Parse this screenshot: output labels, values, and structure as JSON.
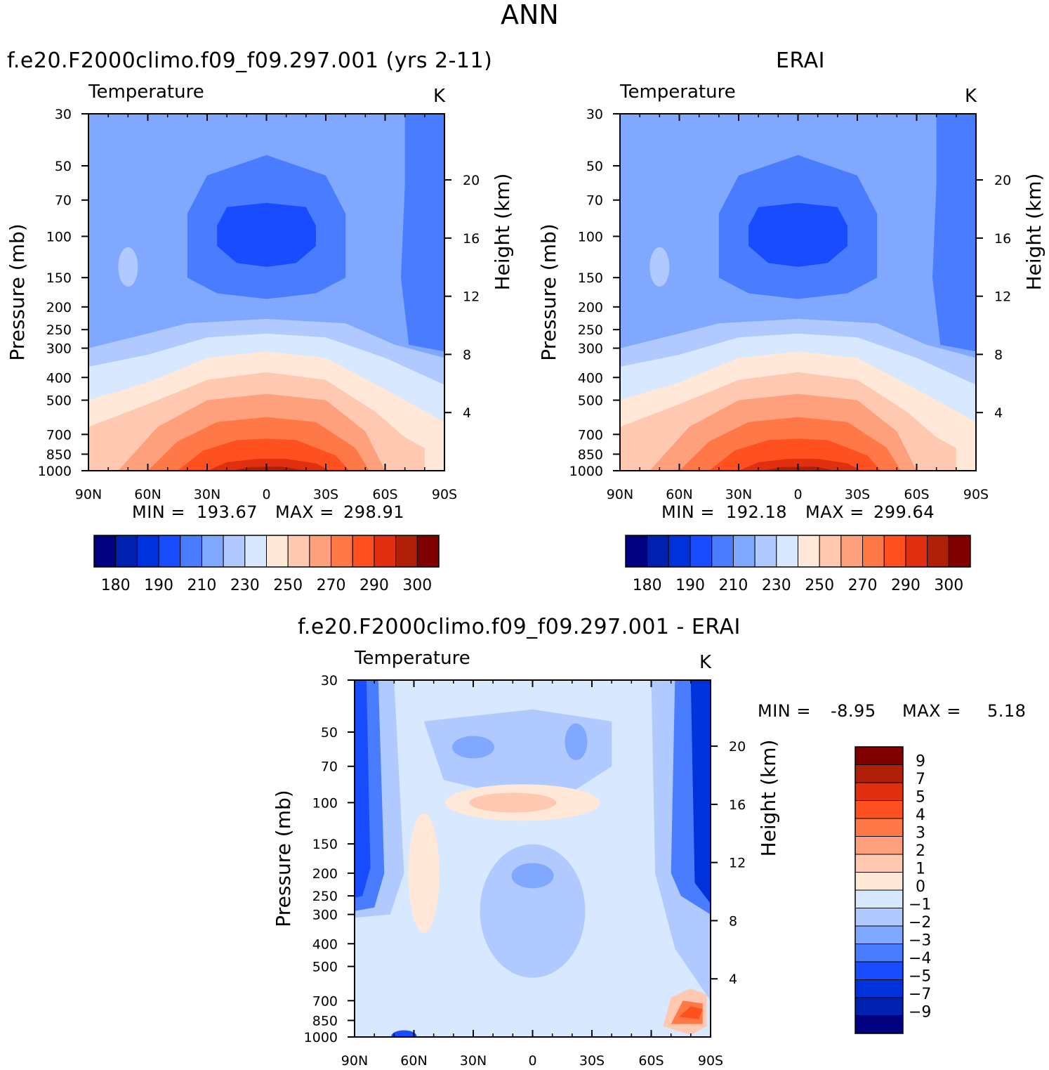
{
  "figure": {
    "title": "ANN"
  },
  "chart_data": [
    {
      "type": "heatmap",
      "id": "model",
      "title": "f.e20.F2000climo.f09_f09.297.001 (yrs 2-11)",
      "variable": "Temperature",
      "units": "K",
      "ylabel": "Pressure (mb)",
      "ylabel_right": "Height (km)",
      "x_ticks": [
        "90N",
        "60N",
        "30N",
        "0",
        "30S",
        "60S",
        "90S"
      ],
      "y_ticks": [
        "30",
        "50",
        "70",
        "100",
        "150",
        "200",
        "250",
        "300",
        "400",
        "500",
        "700",
        "850",
        "1000"
      ],
      "y_ticks_right": [
        "20",
        "16",
        "12",
        "8",
        "4"
      ],
      "min_label": "MIN =",
      "min": "193.67",
      "max_label": "MAX =",
      "max": "298.91",
      "colorbar_labels": [
        "180",
        "190",
        "210",
        "230",
        "250",
        "270",
        "290",
        "300"
      ],
      "colorbar_levels": [
        180,
        185,
        190,
        200,
        210,
        220,
        230,
        240,
        250,
        260,
        270,
        280,
        290,
        295,
        300
      ],
      "y_scale": "log"
    },
    {
      "type": "heatmap",
      "id": "obs",
      "title": "ERAI",
      "variable": "Temperature",
      "units": "K",
      "ylabel": "Pressure (mb)",
      "ylabel_right": "Height (km)",
      "x_ticks": [
        "90N",
        "60N",
        "30N",
        "0",
        "30S",
        "60S",
        "90S"
      ],
      "y_ticks": [
        "30",
        "50",
        "70",
        "100",
        "150",
        "200",
        "250",
        "300",
        "400",
        "500",
        "700",
        "850",
        "1000"
      ],
      "y_ticks_right": [
        "20",
        "16",
        "12",
        "8",
        "4"
      ],
      "min_label": "MIN =",
      "min": "192.18",
      "max_label": "MAX =",
      "max": "299.64",
      "colorbar_labels": [
        "180",
        "190",
        "210",
        "230",
        "250",
        "270",
        "290",
        "300"
      ],
      "colorbar_levels": [
        180,
        185,
        190,
        200,
        210,
        220,
        230,
        240,
        250,
        260,
        270,
        280,
        290,
        295,
        300
      ],
      "y_scale": "log"
    },
    {
      "type": "heatmap",
      "id": "diff",
      "title": "f.e20.F2000climo.f09_f09.297.001 - ERAI",
      "variable": "Temperature",
      "units": "K",
      "ylabel": "Pressure (mb)",
      "ylabel_right": "Height (km)",
      "x_ticks": [
        "90N",
        "60N",
        "30N",
        "0",
        "30S",
        "60S",
        "90S"
      ],
      "y_ticks": [
        "30",
        "50",
        "70",
        "100",
        "150",
        "200",
        "250",
        "300",
        "400",
        "500",
        "700",
        "850",
        "1000"
      ],
      "y_ticks_right": [
        "20",
        "16",
        "12",
        "8",
        "4"
      ],
      "min_label": "MIN =",
      "min": "-8.95",
      "max_label": "MAX =",
      "max": "5.18",
      "colorbar_labels": [
        "9",
        "7",
        "5",
        "4",
        "3",
        "2",
        "1",
        "0",
        "-1",
        "-2",
        "-3",
        "-4",
        "-5",
        "-7",
        "-9"
      ],
      "y_scale": "log"
    }
  ],
  "colors": {
    "temp_palette": [
      "#000080",
      "#0020b0",
      "#0032dc",
      "#1a4cff",
      "#4a7cff",
      "#80a8ff",
      "#b0caff",
      "#d8e8ff",
      "#ffe8d8",
      "#ffc8b0",
      "#ffa07c",
      "#ff7848",
      "#ff5020",
      "#e03010",
      "#b02008",
      "#800000"
    ],
    "diff_palette_top_down": [
      "#800000",
      "#b02008",
      "#e03010",
      "#ff5020",
      "#ff7848",
      "#ffa07c",
      "#ffc8b0",
      "#ffe8d8",
      "#d8e8ff",
      "#b0caff",
      "#80a8ff",
      "#4a7cff",
      "#1a4cff",
      "#0032dc",
      "#0020b0",
      "#000080"
    ]
  }
}
